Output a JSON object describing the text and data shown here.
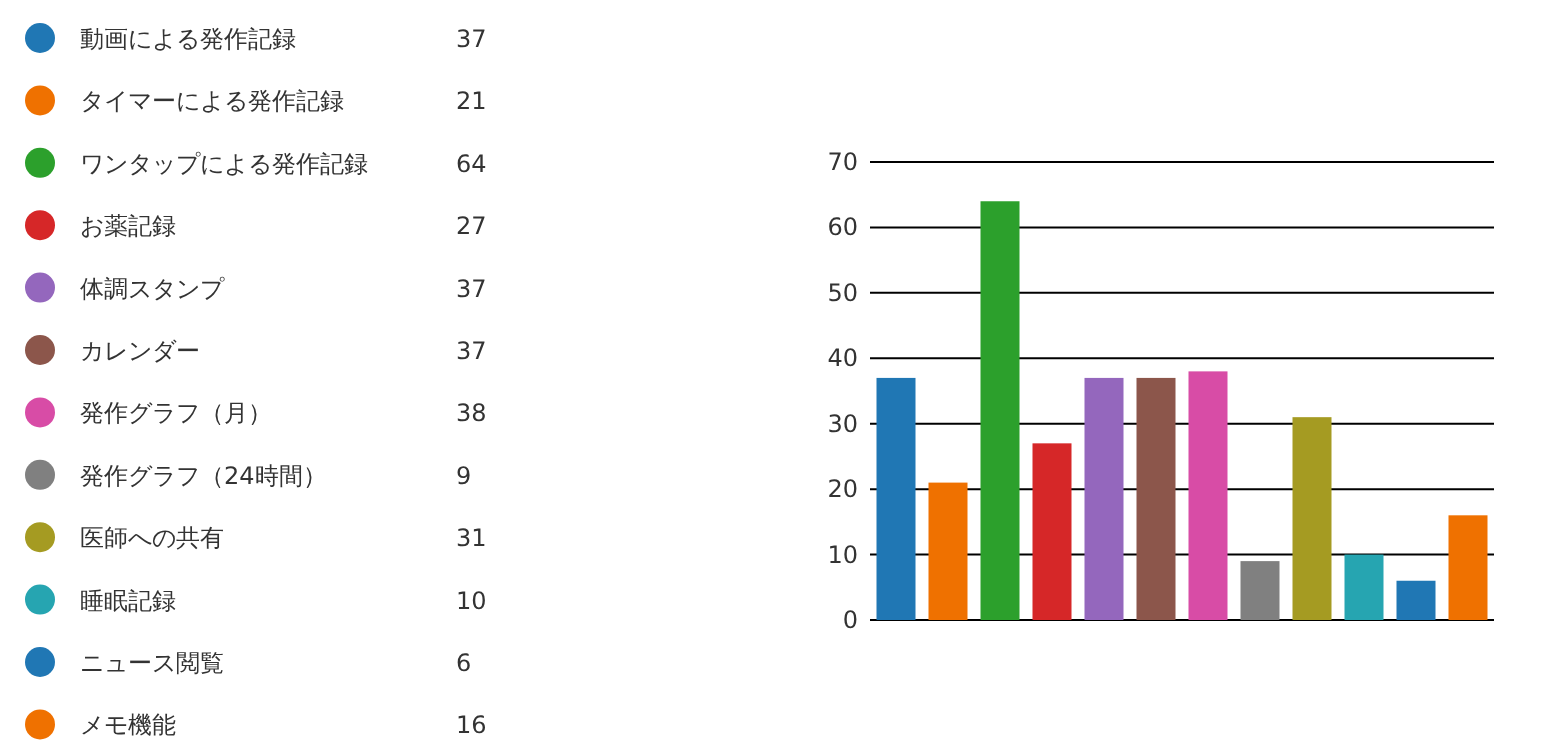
{
  "chart_data": [
    {
      "type": "other",
      "categories": [
        "動画による発作記録",
        "タイマーによる発作記録",
        "ワンタップによる発作記録",
        "お薬記録",
        "体調スタンプ",
        "カレンダー",
        "発作グラフ（月）",
        "発作グラフ（24時間）",
        "医師への共有",
        "睡眠記録",
        "ニュース閲覧",
        "メモ機能"
      ],
      "values": [
        37,
        21,
        64,
        27,
        37,
        37,
        38,
        9,
        31,
        10,
        6,
        16
      ],
      "colors": [
        "#2077b4",
        "#ef7100",
        "#2ca02c",
        "#d62728",
        "#9467bd",
        "#8c564b",
        "#d84ca6",
        "#808080",
        "#a59b22",
        "#26a5b1",
        "#2077b4",
        "#ef7100"
      ],
      "data_labels": true
    },
    {
      "type": "bar",
      "categories": [
        null,
        null,
        null,
        null,
        null,
        null,
        null,
        null,
        null,
        null,
        null,
        null
      ],
      "values": [
        37,
        21,
        64,
        27,
        37,
        37,
        38,
        9,
        31,
        10,
        6,
        16
      ],
      "colors": [
        "#2077b4",
        "#ef7100",
        "#2ca02c",
        "#d62728",
        "#9467bd",
        "#8c564b",
        "#d84ca6",
        "#808080",
        "#a59b22",
        "#26a5b1",
        "#2077b4",
        "#ef7100"
      ],
      "ylim": [
        0,
        70
      ],
      "yticks": [
        0,
        10,
        20,
        30,
        40,
        50,
        60,
        70
      ],
      "grid": "y"
    }
  ]
}
